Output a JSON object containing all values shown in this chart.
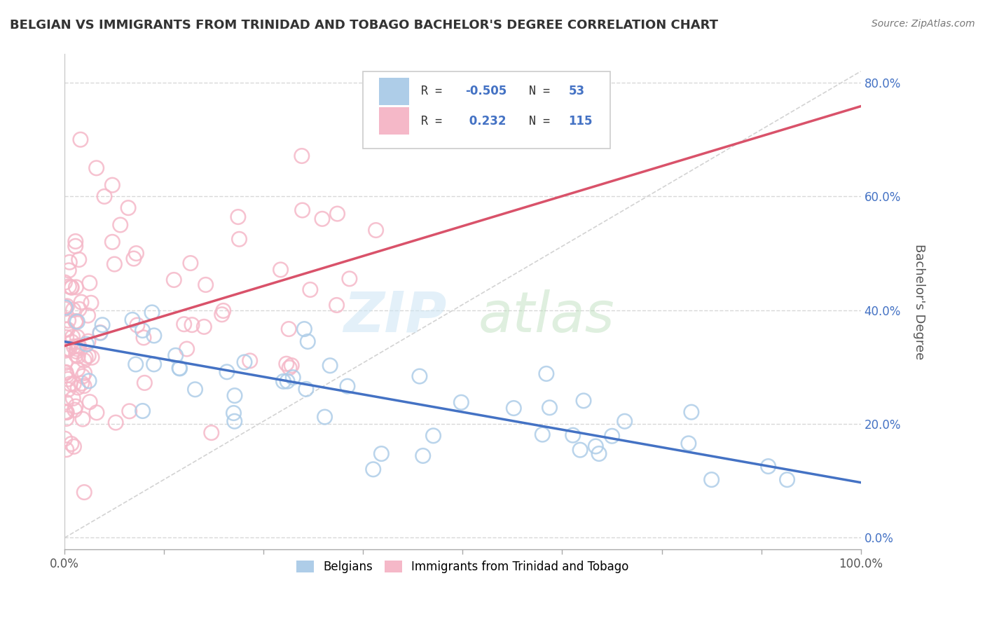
{
  "title": "BELGIAN VS IMMIGRANTS FROM TRINIDAD AND TOBAGO BACHELOR'S DEGREE CORRELATION CHART",
  "source": "Source: ZipAtlas.com",
  "ylabel": "Bachelor's Degree",
  "xlabel": "",
  "xlim": [
    0.0,
    1.0
  ],
  "ylim": [
    -0.02,
    0.85
  ],
  "xticks": [
    0.0,
    0.125,
    0.25,
    0.375,
    0.5,
    0.625,
    0.75,
    0.875,
    1.0
  ],
  "xtick_labels": [
    "0.0%",
    "",
    "",
    "",
    "",
    "",
    "",
    "",
    "100.0%"
  ],
  "yticks": [
    0.0,
    0.2,
    0.4,
    0.6,
    0.8
  ],
  "ytick_labels": [
    "0.0%",
    "20.0%",
    "40.0%",
    "60.0%",
    "80.0%"
  ],
  "belgian_color": "#aecde8",
  "ttob_color": "#f5b8c8",
  "belgian_R": -0.505,
  "belgian_N": 53,
  "ttob_R": 0.232,
  "ttob_N": 115,
  "legend_label_1": "Belgians",
  "legend_label_2": "Immigrants from Trinidad and Tobago",
  "watermark_zip": "ZIP",
  "watermark_atlas": "atlas",
  "belgian_line_color": "#4472c4",
  "ttob_line_color": "#d9526a",
  "ref_line_color": "#c8c8c8",
  "title_color": "#333333",
  "axis_label_color": "#555555",
  "grid_color": "#d8d8d8",
  "yaxis_color": "#4472c4",
  "watermark_color_zip": "#c8dff0",
  "watermark_color_atlas": "#b0d8b0"
}
